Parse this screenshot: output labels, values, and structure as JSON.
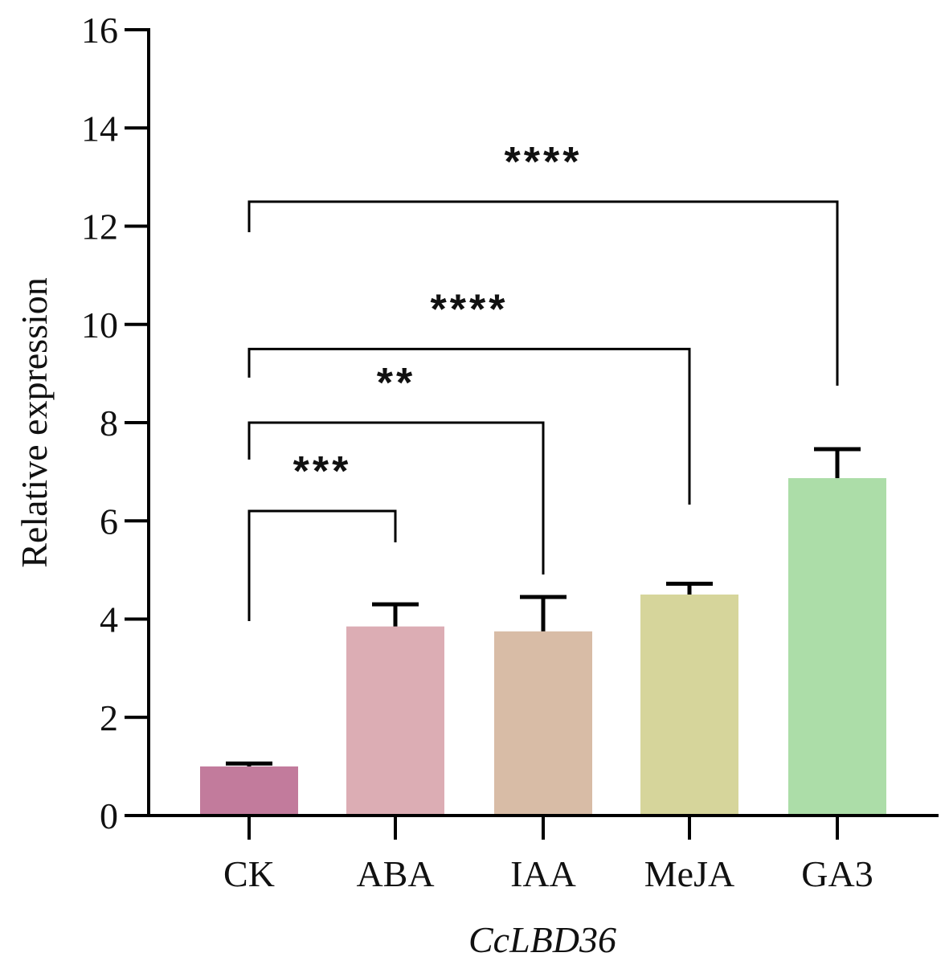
{
  "chart_data": {
    "type": "bar",
    "title": "",
    "xlabel": "CcLBD36",
    "ylabel": "Relative expression",
    "ylim": [
      0,
      16
    ],
    "yticks": [
      0,
      2,
      4,
      6,
      8,
      10,
      12,
      14,
      16
    ],
    "grid": false,
    "categories": [
      "CK",
      "ABA",
      "IAA",
      "MeJA",
      "GA3"
    ],
    "values": [
      1.0,
      3.85,
      3.75,
      4.5,
      6.87
    ],
    "error_upper": [
      1.06,
      4.3,
      4.45,
      4.72,
      7.46
    ],
    "colors": [
      "#c27b9c",
      "#dcadb4",
      "#d8bca6",
      "#d6d59b",
      "#acdda8"
    ],
    "significance": [
      {
        "from": "CK",
        "to": "ABA",
        "label": "***",
        "level": 6.2
      },
      {
        "from": "CK",
        "to": "IAA",
        "label": "**",
        "level": 8.0
      },
      {
        "from": "CK",
        "to": "MeJA",
        "label": "****",
        "level": 9.5
      },
      {
        "from": "CK",
        "to": "GA3",
        "label": "****",
        "level": 12.5
      }
    ]
  }
}
